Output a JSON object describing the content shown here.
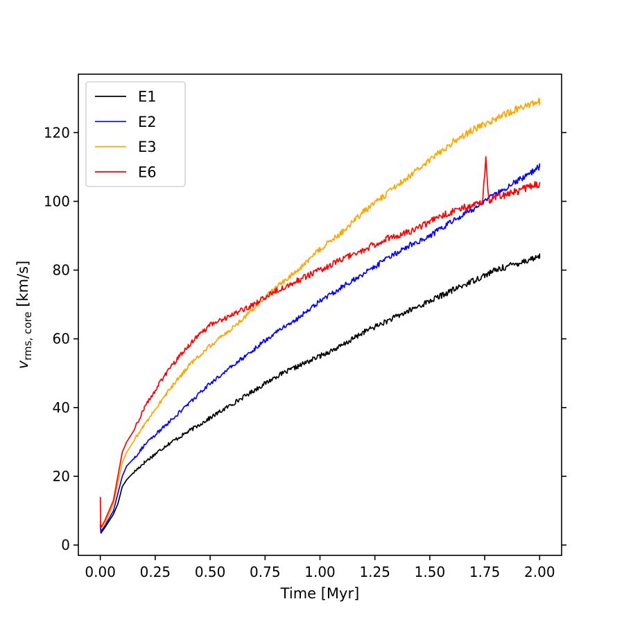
{
  "chart_data": {
    "type": "line",
    "title": "",
    "xlabel": "Time [Myr]",
    "ylabel_main": "v",
    "ylabel_sub": "rms, core",
    "ylabel_unit": " [km/s]",
    "xlim": [
      -0.1,
      2.1
    ],
    "ylim": [
      -3,
      137
    ],
    "xticks": [
      0.0,
      0.25,
      0.5,
      0.75,
      1.0,
      1.25,
      1.5,
      1.75,
      2.0
    ],
    "xtick_labels": [
      "0.00",
      "0.25",
      "0.50",
      "0.75",
      "1.00",
      "1.25",
      "1.50",
      "1.75",
      "2.00"
    ],
    "yticks": [
      0,
      20,
      40,
      60,
      80,
      100,
      120
    ],
    "ytick_labels": [
      "0",
      "20",
      "40",
      "60",
      "80",
      "100",
      "120"
    ],
    "grid": false,
    "legend_position": "top-left",
    "series": [
      {
        "name": "E1",
        "color": "#000000",
        "noise": 0.8,
        "points": [
          [
            0.0,
            6
          ],
          [
            0.003,
            3.5
          ],
          [
            0.02,
            5
          ],
          [
            0.06,
            9
          ],
          [
            0.08,
            12
          ],
          [
            0.1,
            17
          ],
          [
            0.12,
            19
          ],
          [
            0.15,
            21
          ],
          [
            0.2,
            24
          ],
          [
            0.3,
            29
          ],
          [
            0.4,
            33
          ],
          [
            0.5,
            37
          ],
          [
            0.6,
            41
          ],
          [
            0.7,
            45
          ],
          [
            0.8,
            49
          ],
          [
            0.9,
            52
          ],
          [
            1.0,
            55
          ],
          [
            1.1,
            58
          ],
          [
            1.2,
            62
          ],
          [
            1.3,
            65
          ],
          [
            1.4,
            68
          ],
          [
            1.5,
            71
          ],
          [
            1.6,
            74
          ],
          [
            1.7,
            77
          ],
          [
            1.8,
            80
          ],
          [
            1.9,
            82
          ],
          [
            2.0,
            84
          ]
        ]
      },
      {
        "name": "E2",
        "color": "#0000ff",
        "noise": 0.8,
        "points": [
          [
            0.0,
            6
          ],
          [
            0.003,
            4
          ],
          [
            0.02,
            5.5
          ],
          [
            0.06,
            10
          ],
          [
            0.08,
            15
          ],
          [
            0.1,
            20
          ],
          [
            0.12,
            23
          ],
          [
            0.15,
            25
          ],
          [
            0.2,
            29
          ],
          [
            0.3,
            35
          ],
          [
            0.4,
            41
          ],
          [
            0.5,
            47
          ],
          [
            0.6,
            52
          ],
          [
            0.7,
            57
          ],
          [
            0.8,
            62
          ],
          [
            0.9,
            66
          ],
          [
            1.0,
            71
          ],
          [
            1.1,
            75
          ],
          [
            1.2,
            79
          ],
          [
            1.3,
            83
          ],
          [
            1.4,
            87
          ],
          [
            1.5,
            90
          ],
          [
            1.6,
            94
          ],
          [
            1.7,
            98
          ],
          [
            1.8,
            102
          ],
          [
            1.9,
            106
          ],
          [
            2.0,
            110
          ]
        ]
      },
      {
        "name": "E3",
        "color": "#ffa500",
        "noise": 0.9,
        "points": [
          [
            0.0,
            7
          ],
          [
            0.003,
            5
          ],
          [
            0.02,
            6
          ],
          [
            0.06,
            12
          ],
          [
            0.08,
            18
          ],
          [
            0.1,
            24
          ],
          [
            0.12,
            27
          ],
          [
            0.15,
            30
          ],
          [
            0.2,
            35
          ],
          [
            0.3,
            44
          ],
          [
            0.4,
            52
          ],
          [
            0.5,
            58
          ],
          [
            0.6,
            63
          ],
          [
            0.7,
            69
          ],
          [
            0.8,
            75
          ],
          [
            0.9,
            80
          ],
          [
            1.0,
            86
          ],
          [
            1.1,
            91
          ],
          [
            1.2,
            97
          ],
          [
            1.3,
            102
          ],
          [
            1.4,
            107
          ],
          [
            1.5,
            112
          ],
          [
            1.6,
            117
          ],
          [
            1.7,
            121
          ],
          [
            1.8,
            124
          ],
          [
            1.9,
            127
          ],
          [
            2.0,
            129
          ]
        ]
      },
      {
        "name": "E6",
        "color": "#ff0000",
        "noise": 1.0,
        "points": [
          [
            0.0,
            14
          ],
          [
            0.002,
            5
          ],
          [
            0.02,
            7
          ],
          [
            0.06,
            13
          ],
          [
            0.08,
            20
          ],
          [
            0.1,
            27
          ],
          [
            0.12,
            30
          ],
          [
            0.15,
            33
          ],
          [
            0.2,
            40
          ],
          [
            0.3,
            50
          ],
          [
            0.4,
            58
          ],
          [
            0.5,
            64
          ],
          [
            0.6,
            67
          ],
          [
            0.7,
            70
          ],
          [
            0.8,
            74
          ],
          [
            0.9,
            77
          ],
          [
            1.0,
            80
          ],
          [
            1.1,
            83
          ],
          [
            1.2,
            86
          ],
          [
            1.3,
            89
          ],
          [
            1.4,
            91
          ],
          [
            1.5,
            94
          ],
          [
            1.6,
            97
          ],
          [
            1.7,
            99
          ],
          [
            1.74,
            100
          ],
          [
            1.755,
            112
          ],
          [
            1.77,
            100
          ],
          [
            1.8,
            101
          ],
          [
            1.9,
            103
          ],
          [
            2.0,
            105
          ]
        ]
      }
    ]
  }
}
